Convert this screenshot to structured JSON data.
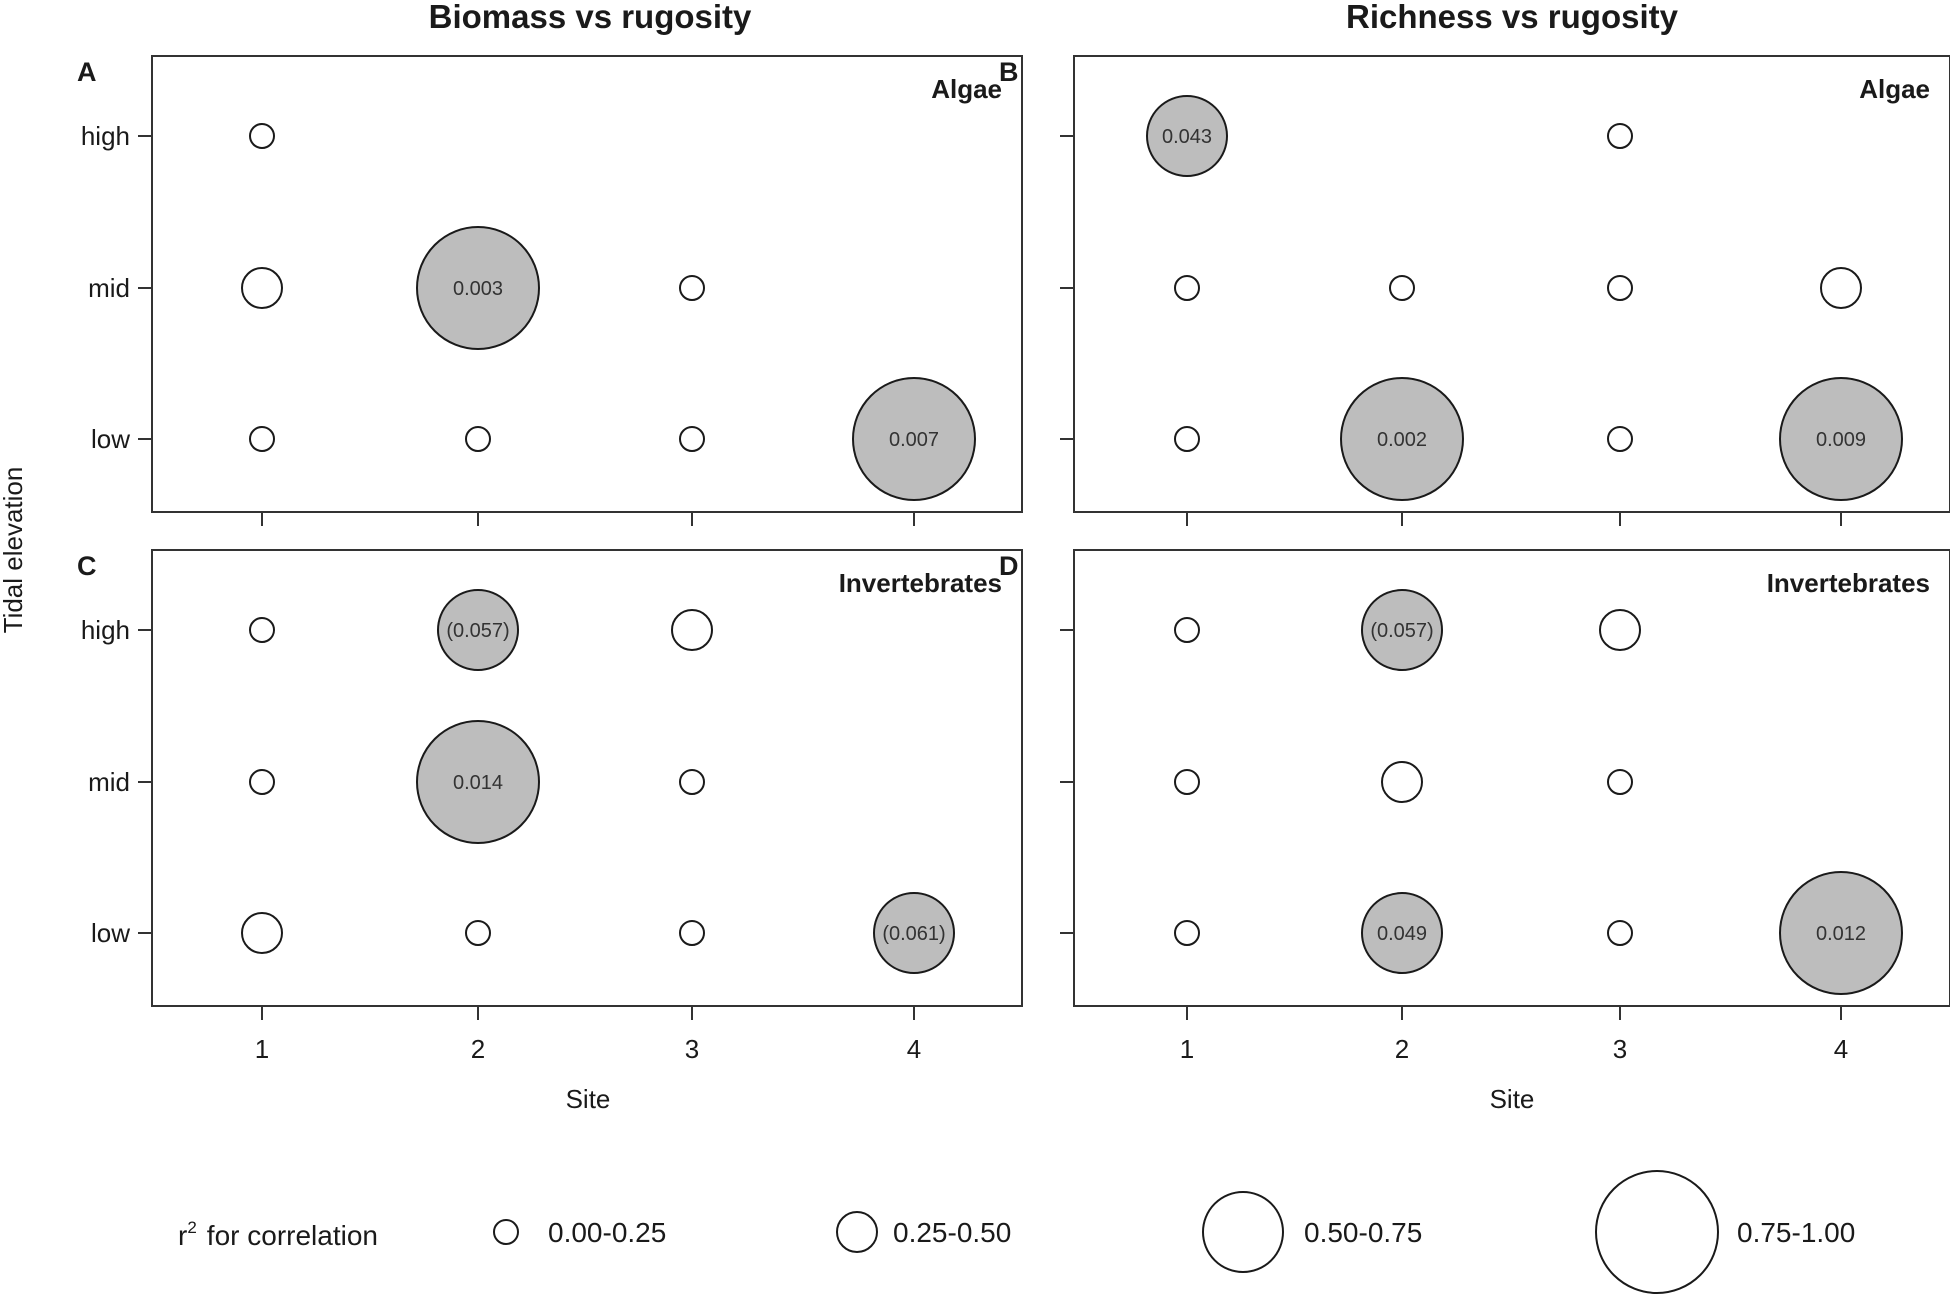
{
  "chart_data": {
    "type": "bubble-matrix",
    "column_titles": [
      "Biomass vs rugosity",
      "Richness vs rugosity"
    ],
    "x_categories": [
      "1",
      "2",
      "3",
      "4"
    ],
    "y_categories": [
      "high",
      "mid",
      "low"
    ],
    "xlabel": "Site",
    "ylabel": "Tidal elevation",
    "colors": {
      "significant_fill": "#bdbdbd",
      "open_fill": "#ffffff",
      "stroke": "#1a1a1a"
    },
    "panels": [
      {
        "letter": "A",
        "group": "Algae",
        "column": 0,
        "row": 0,
        "points": [
          {
            "site": "1",
            "elevation": "high",
            "r2_class": "0.00-0.25",
            "significant": false,
            "label": ""
          },
          {
            "site": "1",
            "elevation": "mid",
            "r2_class": "0.25-0.50",
            "significant": false,
            "label": ""
          },
          {
            "site": "1",
            "elevation": "low",
            "r2_class": "0.00-0.25",
            "significant": false,
            "label": ""
          },
          {
            "site": "2",
            "elevation": "mid",
            "r2_class": "0.75-1.00",
            "significant": true,
            "label": "0.003"
          },
          {
            "site": "2",
            "elevation": "low",
            "r2_class": "0.00-0.25",
            "significant": false,
            "label": ""
          },
          {
            "site": "3",
            "elevation": "mid",
            "r2_class": "0.00-0.25",
            "significant": false,
            "label": ""
          },
          {
            "site": "3",
            "elevation": "low",
            "r2_class": "0.00-0.25",
            "significant": false,
            "label": ""
          },
          {
            "site": "4",
            "elevation": "low",
            "r2_class": "0.75-1.00",
            "significant": true,
            "label": "0.007"
          }
        ]
      },
      {
        "letter": "B",
        "group": "Algae",
        "column": 1,
        "row": 0,
        "points": [
          {
            "site": "1",
            "elevation": "high",
            "r2_class": "0.50-0.75",
            "significant": true,
            "label": "0.043"
          },
          {
            "site": "1",
            "elevation": "mid",
            "r2_class": "0.00-0.25",
            "significant": false,
            "label": ""
          },
          {
            "site": "1",
            "elevation": "low",
            "r2_class": "0.00-0.25",
            "significant": false,
            "label": ""
          },
          {
            "site": "2",
            "elevation": "mid",
            "r2_class": "0.00-0.25",
            "significant": false,
            "label": ""
          },
          {
            "site": "2",
            "elevation": "low",
            "r2_class": "0.75-1.00",
            "significant": true,
            "label": "0.002"
          },
          {
            "site": "3",
            "elevation": "high",
            "r2_class": "0.00-0.25",
            "significant": false,
            "label": ""
          },
          {
            "site": "3",
            "elevation": "mid",
            "r2_class": "0.00-0.25",
            "significant": false,
            "label": ""
          },
          {
            "site": "3",
            "elevation": "low",
            "r2_class": "0.00-0.25",
            "significant": false,
            "label": ""
          },
          {
            "site": "4",
            "elevation": "mid",
            "r2_class": "0.25-0.50",
            "significant": false,
            "label": ""
          },
          {
            "site": "4",
            "elevation": "low",
            "r2_class": "0.75-1.00",
            "significant": true,
            "label": "0.009"
          }
        ]
      },
      {
        "letter": "C",
        "group": "Invertebrates",
        "column": 0,
        "row": 1,
        "points": [
          {
            "site": "1",
            "elevation": "high",
            "r2_class": "0.00-0.25",
            "significant": false,
            "label": ""
          },
          {
            "site": "1",
            "elevation": "mid",
            "r2_class": "0.00-0.25",
            "significant": false,
            "label": ""
          },
          {
            "site": "1",
            "elevation": "low",
            "r2_class": "0.25-0.50",
            "significant": false,
            "label": ""
          },
          {
            "site": "2",
            "elevation": "high",
            "r2_class": "0.50-0.75",
            "significant": true,
            "label": "(0.057)"
          },
          {
            "site": "2",
            "elevation": "mid",
            "r2_class": "0.75-1.00",
            "significant": true,
            "label": "0.014"
          },
          {
            "site": "2",
            "elevation": "low",
            "r2_class": "0.00-0.25",
            "significant": false,
            "label": ""
          },
          {
            "site": "3",
            "elevation": "high",
            "r2_class": "0.25-0.50",
            "significant": false,
            "label": ""
          },
          {
            "site": "3",
            "elevation": "mid",
            "r2_class": "0.00-0.25",
            "significant": false,
            "label": ""
          },
          {
            "site": "3",
            "elevation": "low",
            "r2_class": "0.00-0.25",
            "significant": false,
            "label": ""
          },
          {
            "site": "4",
            "elevation": "low",
            "r2_class": "0.50-0.75",
            "significant": true,
            "label": "(0.061)"
          }
        ]
      },
      {
        "letter": "D",
        "group": "Invertebrates",
        "column": 1,
        "row": 1,
        "points": [
          {
            "site": "1",
            "elevation": "high",
            "r2_class": "0.00-0.25",
            "significant": false,
            "label": ""
          },
          {
            "site": "1",
            "elevation": "mid",
            "r2_class": "0.00-0.25",
            "significant": false,
            "label": ""
          },
          {
            "site": "1",
            "elevation": "low",
            "r2_class": "0.00-0.25",
            "significant": false,
            "label": ""
          },
          {
            "site": "2",
            "elevation": "high",
            "r2_class": "0.50-0.75",
            "significant": true,
            "label": "(0.057)"
          },
          {
            "site": "2",
            "elevation": "mid",
            "r2_class": "0.25-0.50",
            "significant": false,
            "label": ""
          },
          {
            "site": "2",
            "elevation": "low",
            "r2_class": "0.50-0.75",
            "significant": true,
            "label": "0.049"
          },
          {
            "site": "3",
            "elevation": "high",
            "r2_class": "0.25-0.50",
            "significant": false,
            "label": ""
          },
          {
            "site": "3",
            "elevation": "mid",
            "r2_class": "0.00-0.25",
            "significant": false,
            "label": ""
          },
          {
            "site": "3",
            "elevation": "low",
            "r2_class": "0.00-0.25",
            "significant": false,
            "label": ""
          },
          {
            "site": "4",
            "elevation": "low",
            "r2_class": "0.75-1.00",
            "significant": true,
            "label": "0.012"
          }
        ]
      }
    ],
    "legend": {
      "title_prefix": "r",
      "title_superscript": "2",
      "title_suffix": "for correlation",
      "classes": [
        "0.00-0.25",
        "0.25-0.50",
        "0.50-0.75",
        "0.75-1.00"
      ]
    }
  }
}
